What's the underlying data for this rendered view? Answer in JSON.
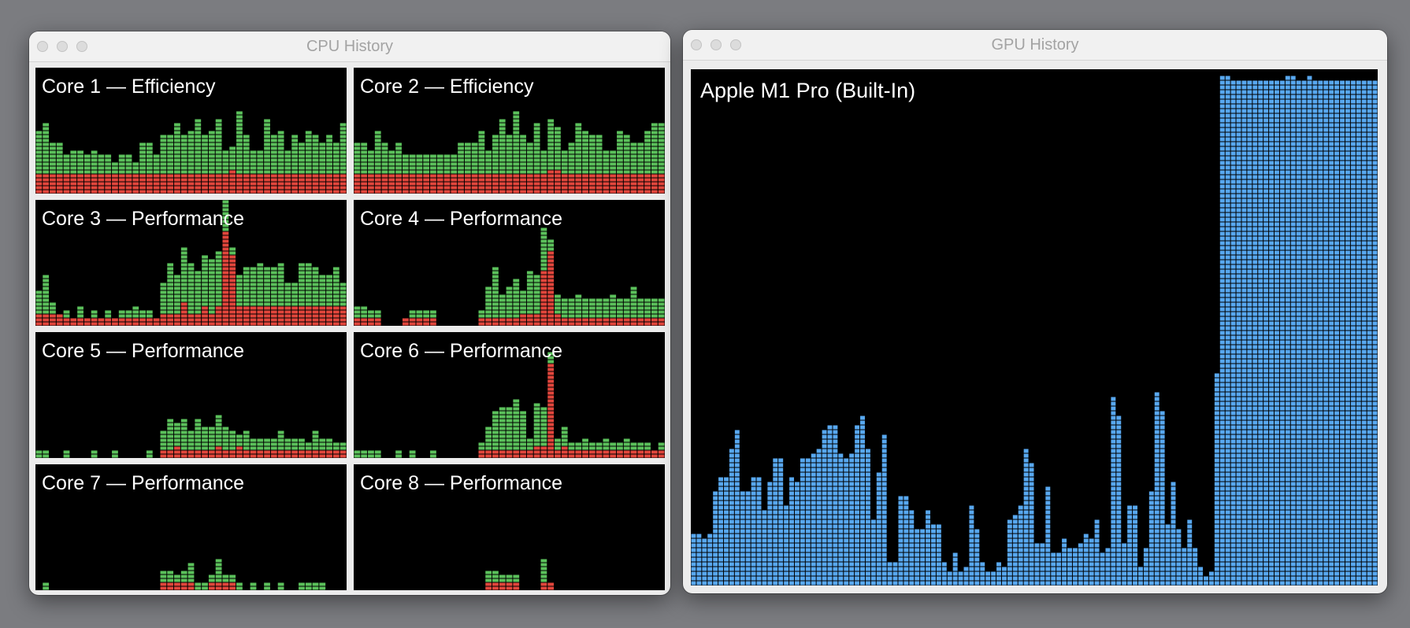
{
  "cpu_window": {
    "title": "CPU History",
    "cores": [
      {
        "label": "Core 1 — Efficiency",
        "user": [
          0.35,
          0.4,
          0.25,
          0.25,
          0.15,
          0.2,
          0.2,
          0.15,
          0.2,
          0.15,
          0.15,
          0.1,
          0.15,
          0.15,
          0.1,
          0.25,
          0.25,
          0.15,
          0.3,
          0.3,
          0.4,
          0.3,
          0.35,
          0.45,
          0.3,
          0.35,
          0.45,
          0.2,
          0.2,
          0.5,
          0.3,
          0.2,
          0.2,
          0.45,
          0.3,
          0.35,
          0.2,
          0.3,
          0.25,
          0.35,
          0.3,
          0.25,
          0.3,
          0.25,
          0.4
        ],
        "system": [
          0.15,
          0.15,
          0.15,
          0.15,
          0.15,
          0.15,
          0.15,
          0.15,
          0.15,
          0.15,
          0.15,
          0.15,
          0.15,
          0.15,
          0.15,
          0.15,
          0.15,
          0.15,
          0.15,
          0.15,
          0.15,
          0.15,
          0.15,
          0.15,
          0.15,
          0.15,
          0.15,
          0.15,
          0.2,
          0.15,
          0.15,
          0.15,
          0.15,
          0.15,
          0.15,
          0.15,
          0.15,
          0.15,
          0.15,
          0.15,
          0.15,
          0.15,
          0.15,
          0.15,
          0.15
        ]
      },
      {
        "label": "Core 2 — Efficiency",
        "user": [
          0.25,
          0.25,
          0.2,
          0.35,
          0.25,
          0.2,
          0.25,
          0.15,
          0.15,
          0.15,
          0.15,
          0.15,
          0.15,
          0.15,
          0.15,
          0.25,
          0.25,
          0.25,
          0.35,
          0.2,
          0.3,
          0.45,
          0.3,
          0.5,
          0.3,
          0.25,
          0.4,
          0.2,
          0.4,
          0.35,
          0.2,
          0.25,
          0.4,
          0.35,
          0.3,
          0.3,
          0.2,
          0.2,
          0.35,
          0.3,
          0.25,
          0.25,
          0.35,
          0.4,
          0.4
        ],
        "system": [
          0.15,
          0.15,
          0.15,
          0.15,
          0.15,
          0.15,
          0.15,
          0.15,
          0.15,
          0.15,
          0.15,
          0.15,
          0.15,
          0.15,
          0.15,
          0.15,
          0.15,
          0.15,
          0.15,
          0.15,
          0.15,
          0.15,
          0.15,
          0.15,
          0.15,
          0.15,
          0.15,
          0.15,
          0.2,
          0.2,
          0.15,
          0.15,
          0.15,
          0.15,
          0.15,
          0.15,
          0.15,
          0.15,
          0.15,
          0.15,
          0.15,
          0.15,
          0.15,
          0.15,
          0.15
        ]
      },
      {
        "label": "Core 3 — Performance",
        "user": [
          0.2,
          0.3,
          0.1,
          0.0,
          0.05,
          0.0,
          0.1,
          0.0,
          0.05,
          0.0,
          0.05,
          0.0,
          0.05,
          0.05,
          0.1,
          0.05,
          0.05,
          0.0,
          0.25,
          0.4,
          0.3,
          0.45,
          0.4,
          0.35,
          0.4,
          0.45,
          0.45,
          0.3,
          0.05,
          0.25,
          0.3,
          0.3,
          0.35,
          0.3,
          0.3,
          0.35,
          0.2,
          0.2,
          0.35,
          0.35,
          0.3,
          0.25,
          0.25,
          0.3,
          0.2
        ],
        "system": [
          0.1,
          0.1,
          0.1,
          0.1,
          0.05,
          0.05,
          0.05,
          0.05,
          0.05,
          0.05,
          0.05,
          0.05,
          0.05,
          0.05,
          0.05,
          0.05,
          0.05,
          0.05,
          0.1,
          0.1,
          0.1,
          0.2,
          0.1,
          0.1,
          0.15,
          0.1,
          0.15,
          0.75,
          0.55,
          0.15,
          0.15,
          0.15,
          0.15,
          0.15,
          0.15,
          0.15,
          0.15,
          0.15,
          0.15,
          0.15,
          0.15,
          0.15,
          0.15,
          0.15,
          0.15
        ]
      },
      {
        "label": "Core 4 — Performance",
        "user": [
          0.1,
          0.1,
          0.05,
          0.05,
          0.0,
          0.0,
          0.0,
          0.0,
          0.05,
          0.05,
          0.05,
          0.05,
          0.0,
          0.0,
          0.0,
          0.0,
          0.0,
          0.0,
          0.05,
          0.25,
          0.4,
          0.2,
          0.25,
          0.3,
          0.2,
          0.35,
          0.3,
          0.35,
          0.1,
          0.15,
          0.15,
          0.15,
          0.2,
          0.15,
          0.15,
          0.15,
          0.15,
          0.2,
          0.15,
          0.15,
          0.25,
          0.15,
          0.15,
          0.15,
          0.15
        ],
        "system": [
          0.05,
          0.05,
          0.05,
          0.05,
          0.0,
          0.0,
          0.0,
          0.05,
          0.05,
          0.05,
          0.05,
          0.05,
          0.0,
          0.0,
          0.0,
          0.0,
          0.0,
          0.0,
          0.05,
          0.05,
          0.05,
          0.05,
          0.05,
          0.05,
          0.1,
          0.1,
          0.1,
          0.45,
          0.6,
          0.1,
          0.05,
          0.05,
          0.05,
          0.05,
          0.05,
          0.05,
          0.05,
          0.05,
          0.05,
          0.05,
          0.05,
          0.05,
          0.05,
          0.05,
          0.05
        ]
      },
      {
        "label": "Core 5 — Performance",
        "user": [
          0.05,
          0.05,
          0.0,
          0.0,
          0.05,
          0.0,
          0.0,
          0.0,
          0.05,
          0.0,
          0.0,
          0.05,
          0.0,
          0.0,
          0.0,
          0.0,
          0.05,
          0.0,
          0.15,
          0.25,
          0.2,
          0.25,
          0.15,
          0.25,
          0.2,
          0.2,
          0.25,
          0.2,
          0.15,
          0.1,
          0.15,
          0.1,
          0.1,
          0.1,
          0.1,
          0.15,
          0.1,
          0.1,
          0.1,
          0.05,
          0.15,
          0.1,
          0.1,
          0.05,
          0.05
        ],
        "system": [
          0.0,
          0.0,
          0.0,
          0.0,
          0.0,
          0.0,
          0.0,
          0.0,
          0.0,
          0.0,
          0.0,
          0.0,
          0.0,
          0.0,
          0.0,
          0.0,
          0.0,
          0.0,
          0.05,
          0.05,
          0.1,
          0.05,
          0.05,
          0.05,
          0.05,
          0.05,
          0.1,
          0.05,
          0.05,
          0.1,
          0.05,
          0.05,
          0.05,
          0.05,
          0.05,
          0.05,
          0.05,
          0.05,
          0.05,
          0.05,
          0.05,
          0.05,
          0.05,
          0.05,
          0.05
        ]
      },
      {
        "label": "Core 6 — Performance",
        "user": [
          0.05,
          0.05,
          0.05,
          0.05,
          0.0,
          0.0,
          0.05,
          0.0,
          0.05,
          0.0,
          0.0,
          0.05,
          0.0,
          0.0,
          0.0,
          0.0,
          0.0,
          0.0,
          0.05,
          0.2,
          0.3,
          0.35,
          0.35,
          0.4,
          0.3,
          0.1,
          0.35,
          0.3,
          0.1,
          0.1,
          0.15,
          0.05,
          0.05,
          0.1,
          0.05,
          0.05,
          0.1,
          0.05,
          0.05,
          0.1,
          0.05,
          0.05,
          0.05,
          0.0,
          0.05
        ],
        "system": [
          0.0,
          0.0,
          0.0,
          0.0,
          0.0,
          0.0,
          0.0,
          0.0,
          0.0,
          0.0,
          0.0,
          0.0,
          0.0,
          0.0,
          0.0,
          0.0,
          0.0,
          0.0,
          0.05,
          0.05,
          0.05,
          0.05,
          0.05,
          0.05,
          0.05,
          0.05,
          0.1,
          0.1,
          0.75,
          0.05,
          0.1,
          0.05,
          0.05,
          0.05,
          0.05,
          0.05,
          0.05,
          0.05,
          0.05,
          0.05,
          0.05,
          0.05,
          0.05,
          0.05,
          0.05
        ]
      },
      {
        "label": "Core 7 — Performance",
        "user": [
          0.0,
          0.05,
          0.0,
          0.0,
          0.0,
          0.0,
          0.0,
          0.0,
          0.0,
          0.0,
          0.0,
          0.0,
          0.0,
          0.0,
          0.0,
          0.0,
          0.0,
          0.0,
          0.1,
          0.1,
          0.05,
          0.1,
          0.15,
          0.05,
          0.05,
          0.05,
          0.2,
          0.05,
          0.05,
          0.05,
          0.0,
          0.05,
          0.0,
          0.05,
          0.0,
          0.05,
          0.0,
          0.0,
          0.05,
          0.05,
          0.05,
          0.05,
          0.0,
          0.0,
          0.0
        ],
        "system": [
          0.0,
          0.0,
          0.0,
          0.0,
          0.0,
          0.0,
          0.0,
          0.0,
          0.0,
          0.0,
          0.0,
          0.0,
          0.0,
          0.0,
          0.0,
          0.0,
          0.0,
          0.0,
          0.05,
          0.05,
          0.05,
          0.05,
          0.05,
          0.0,
          0.0,
          0.05,
          0.05,
          0.05,
          0.05,
          0.0,
          0.0,
          0.0,
          0.0,
          0.0,
          0.0,
          0.0,
          0.0,
          0.0,
          0.0,
          0.0,
          0.0,
          0.0,
          0.0,
          0.0,
          0.0
        ]
      },
      {
        "label": "Core 8 — Performance",
        "user": [
          0.0,
          0.0,
          0.0,
          0.0,
          0.0,
          0.0,
          0.0,
          0.0,
          0.0,
          0.0,
          0.0,
          0.0,
          0.0,
          0.0,
          0.0,
          0.0,
          0.0,
          0.0,
          0.0,
          0.1,
          0.1,
          0.05,
          0.05,
          0.05,
          0.0,
          0.0,
          0.0,
          0.2,
          0.0,
          0.0,
          0.0,
          0.0,
          0.0,
          0.0,
          0.0,
          0.0,
          0.0,
          0.0,
          0.0,
          0.0,
          0.0,
          0.0,
          0.0,
          0.0,
          0.0
        ],
        "system": [
          0.0,
          0.0,
          0.0,
          0.0,
          0.0,
          0.0,
          0.0,
          0.0,
          0.0,
          0.0,
          0.0,
          0.0,
          0.0,
          0.0,
          0.0,
          0.0,
          0.0,
          0.0,
          0.0,
          0.05,
          0.05,
          0.05,
          0.05,
          0.05,
          0.0,
          0.0,
          0.0,
          0.05,
          0.05,
          0.0,
          0.0,
          0.0,
          0.0,
          0.0,
          0.0,
          0.0,
          0.0,
          0.0,
          0.0,
          0.0,
          0.0,
          0.0,
          0.0,
          0.0,
          0.0
        ]
      }
    ]
  },
  "gpu_window": {
    "title": "GPU History",
    "label": "Apple M1 Pro (Built-In)",
    "usage": [
      0.1,
      0.1,
      0.09,
      0.1,
      0.18,
      0.21,
      0.21,
      0.27,
      0.3,
      0.18,
      0.18,
      0.21,
      0.21,
      0.15,
      0.2,
      0.25,
      0.25,
      0.16,
      0.21,
      0.2,
      0.25,
      0.25,
      0.26,
      0.27,
      0.3,
      0.31,
      0.31,
      0.26,
      0.25,
      0.26,
      0.31,
      0.33,
      0.27,
      0.13,
      0.22,
      0.29,
      0.05,
      0.05,
      0.17,
      0.17,
      0.15,
      0.11,
      0.11,
      0.15,
      0.12,
      0.12,
      0.05,
      0.03,
      0.06,
      0.03,
      0.04,
      0.16,
      0.11,
      0.05,
      0.03,
      0.03,
      0.05,
      0.04,
      0.13,
      0.14,
      0.16,
      0.27,
      0.24,
      0.08,
      0.08,
      0.19,
      0.06,
      0.06,
      0.09,
      0.07,
      0.07,
      0.08,
      0.1,
      0.09,
      0.13,
      0.06,
      0.07,
      0.37,
      0.33,
      0.08,
      0.16,
      0.16,
      0.04,
      0.07,
      0.18,
      0.38,
      0.34,
      0.12,
      0.2,
      0.11,
      0.07,
      0.13,
      0.07,
      0.04,
      0.02,
      0.03,
      0.41,
      0.99,
      0.99,
      0.98,
      0.98,
      0.98,
      0.98,
      0.98,
      0.98,
      0.98,
      0.98,
      0.98,
      0.98,
      0.99,
      0.99,
      0.98,
      0.98,
      0.99,
      0.98,
      0.98,
      0.98,
      0.98,
      0.98,
      0.98,
      0.98,
      0.98,
      0.98,
      0.98,
      0.98,
      0.98
    ]
  },
  "colors": {
    "user": "#5bc15b",
    "system": "#e2463c",
    "gpu": "#58a8f0",
    "grid": "#000000"
  }
}
